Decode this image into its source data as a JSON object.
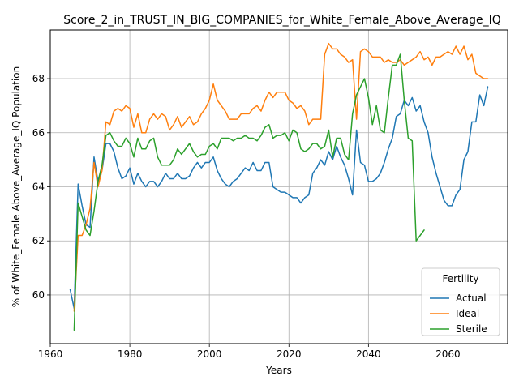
{
  "chart_data": {
    "type": "line",
    "title": "Score_2_in_TRUST_IN_BIG_COMPANIES_for_White_Female_Above_Average_IQ",
    "xlabel": "Years",
    "ylabel": "% of White_Female Above_Average_IQ Population",
    "xlim": [
      1960,
      2075
    ],
    "ylim": [
      58.2,
      69.8
    ],
    "xticks": [
      1960,
      1980,
      2000,
      2020,
      2040,
      2060
    ],
    "yticks": [
      60,
      62,
      64,
      66,
      68
    ],
    "grid": true,
    "legend": {
      "title": "Fertility",
      "placement": "bottom-right"
    },
    "series": [
      {
        "name": "Actual",
        "color": "#1f77b4",
        "points": [
          [
            1965,
            60.2
          ],
          [
            1966,
            59.5
          ],
          [
            1967,
            64.1
          ],
          [
            1968,
            63.3
          ],
          [
            1969,
            62.6
          ],
          [
            1970,
            62.5
          ],
          [
            1971,
            65.1
          ],
          [
            1972,
            64.2
          ],
          [
            1973,
            64.6
          ],
          [
            1974,
            65.6
          ],
          [
            1975,
            65.6
          ],
          [
            1976,
            65.3
          ],
          [
            1977,
            64.7
          ],
          [
            1978,
            64.3
          ],
          [
            1979,
            64.4
          ],
          [
            1980,
            64.7
          ],
          [
            1981,
            64.1
          ],
          [
            1982,
            64.5
          ],
          [
            1983,
            64.2
          ],
          [
            1984,
            64.0
          ],
          [
            1985,
            64.2
          ],
          [
            1986,
            64.2
          ],
          [
            1987,
            64.0
          ],
          [
            1988,
            64.2
          ],
          [
            1989,
            64.5
          ],
          [
            1990,
            64.3
          ],
          [
            1991,
            64.3
          ],
          [
            1992,
            64.5
          ],
          [
            1993,
            64.3
          ],
          [
            1994,
            64.3
          ],
          [
            1995,
            64.4
          ],
          [
            1996,
            64.7
          ],
          [
            1997,
            64.9
          ],
          [
            1998,
            64.7
          ],
          [
            1999,
            64.9
          ],
          [
            2000,
            64.9
          ],
          [
            2001,
            65.1
          ],
          [
            2002,
            64.6
          ],
          [
            2003,
            64.3
          ],
          [
            2004,
            64.1
          ],
          [
            2005,
            64.0
          ],
          [
            2006,
            64.2
          ],
          [
            2007,
            64.3
          ],
          [
            2008,
            64.5
          ],
          [
            2009,
            64.7
          ],
          [
            2010,
            64.6
          ],
          [
            2011,
            64.9
          ],
          [
            2012,
            64.6
          ],
          [
            2013,
            64.6
          ],
          [
            2014,
            64.9
          ],
          [
            2015,
            64.9
          ],
          [
            2016,
            64.0
          ],
          [
            2017,
            63.9
          ],
          [
            2018,
            63.8
          ],
          [
            2019,
            63.8
          ],
          [
            2020,
            63.7
          ],
          [
            2021,
            63.6
          ],
          [
            2022,
            63.6
          ],
          [
            2023,
            63.4
          ],
          [
            2024,
            63.6
          ],
          [
            2025,
            63.7
          ],
          [
            2026,
            64.5
          ],
          [
            2027,
            64.7
          ],
          [
            2028,
            65.0
          ],
          [
            2029,
            64.8
          ],
          [
            2030,
            65.3
          ],
          [
            2031,
            65.0
          ],
          [
            2032,
            65.5
          ],
          [
            2033,
            65.1
          ],
          [
            2034,
            64.8
          ],
          [
            2035,
            64.3
          ],
          [
            2036,
            63.7
          ],
          [
            2037,
            66.1
          ],
          [
            2038,
            64.9
          ],
          [
            2039,
            64.8
          ],
          [
            2040,
            64.2
          ],
          [
            2041,
            64.2
          ],
          [
            2042,
            64.3
          ],
          [
            2043,
            64.5
          ],
          [
            2044,
            64.9
          ],
          [
            2045,
            65.4
          ],
          [
            2046,
            65.8
          ],
          [
            2047,
            66.6
          ],
          [
            2048,
            66.7
          ],
          [
            2049,
            67.2
          ],
          [
            2050,
            67.0
          ],
          [
            2051,
            67.3
          ],
          [
            2052,
            66.8
          ],
          [
            2053,
            67.0
          ],
          [
            2054,
            66.4
          ],
          [
            2055,
            66.0
          ],
          [
            2056,
            65.1
          ],
          [
            2057,
            64.5
          ],
          [
            2058,
            64.0
          ],
          [
            2059,
            63.5
          ],
          [
            2060,
            63.3
          ],
          [
            2061,
            63.3
          ],
          [
            2062,
            63.7
          ],
          [
            2063,
            63.9
          ],
          [
            2064,
            65.0
          ],
          [
            2065,
            65.3
          ],
          [
            2066,
            66.4
          ],
          [
            2067,
            66.4
          ],
          [
            2068,
            67.4
          ],
          [
            2069,
            67.0
          ],
          [
            2070,
            67.7
          ]
        ]
      },
      {
        "name": "Ideal",
        "color": "#ff7f0e",
        "points": [
          [
            1966,
            59.4
          ],
          [
            1967,
            62.2
          ],
          [
            1968,
            62.2
          ],
          [
            1969,
            62.6
          ],
          [
            1970,
            63.2
          ],
          [
            1971,
            64.9
          ],
          [
            1972,
            64.0
          ],
          [
            1973,
            64.6
          ],
          [
            1974,
            66.4
          ],
          [
            1975,
            66.3
          ],
          [
            1976,
            66.8
          ],
          [
            1977,
            66.9
          ],
          [
            1978,
            66.8
          ],
          [
            1979,
            67.0
          ],
          [
            1980,
            66.9
          ],
          [
            1981,
            66.2
          ],
          [
            1982,
            66.7
          ],
          [
            1983,
            66.0
          ],
          [
            1984,
            66.0
          ],
          [
            1985,
            66.5
          ],
          [
            1986,
            66.7
          ],
          [
            1987,
            66.5
          ],
          [
            1988,
            66.7
          ],
          [
            1989,
            66.6
          ],
          [
            1990,
            66.1
          ],
          [
            1991,
            66.3
          ],
          [
            1992,
            66.6
          ],
          [
            1993,
            66.2
          ],
          [
            1994,
            66.4
          ],
          [
            1995,
            66.6
          ],
          [
            1996,
            66.3
          ],
          [
            1997,
            66.4
          ],
          [
            1998,
            66.7
          ],
          [
            1999,
            66.9
          ],
          [
            2000,
            67.2
          ],
          [
            2001,
            67.8
          ],
          [
            2002,
            67.2
          ],
          [
            2003,
            67.0
          ],
          [
            2004,
            66.8
          ],
          [
            2005,
            66.5
          ],
          [
            2006,
            66.5
          ],
          [
            2007,
            66.5
          ],
          [
            2008,
            66.7
          ],
          [
            2009,
            66.7
          ],
          [
            2010,
            66.7
          ],
          [
            2011,
            66.9
          ],
          [
            2012,
            67.0
          ],
          [
            2013,
            66.8
          ],
          [
            2014,
            67.2
          ],
          [
            2015,
            67.5
          ],
          [
            2016,
            67.3
          ],
          [
            2017,
            67.5
          ],
          [
            2018,
            67.5
          ],
          [
            2019,
            67.5
          ],
          [
            2020,
            67.2
          ],
          [
            2021,
            67.1
          ],
          [
            2022,
            66.9
          ],
          [
            2023,
            67.0
          ],
          [
            2024,
            66.8
          ],
          [
            2025,
            66.3
          ],
          [
            2026,
            66.5
          ],
          [
            2027,
            66.5
          ],
          [
            2028,
            66.5
          ],
          [
            2029,
            68.9
          ],
          [
            2030,
            69.3
          ],
          [
            2031,
            69.1
          ],
          [
            2032,
            69.1
          ],
          [
            2033,
            68.9
          ],
          [
            2034,
            68.8
          ],
          [
            2035,
            68.6
          ],
          [
            2036,
            68.7
          ],
          [
            2037,
            66.5
          ],
          [
            2038,
            69.0
          ],
          [
            2039,
            69.1
          ],
          [
            2040,
            69.0
          ],
          [
            2041,
            68.8
          ],
          [
            2042,
            68.8
          ],
          [
            2043,
            68.8
          ],
          [
            2044,
            68.6
          ],
          [
            2045,
            68.7
          ],
          [
            2046,
            68.6
          ],
          [
            2047,
            68.6
          ],
          [
            2048,
            68.7
          ],
          [
            2049,
            68.5
          ],
          [
            2050,
            68.6
          ],
          [
            2051,
            68.7
          ],
          [
            2052,
            68.8
          ],
          [
            2053,
            69.0
          ],
          [
            2054,
            68.7
          ],
          [
            2055,
            68.8
          ],
          [
            2056,
            68.5
          ],
          [
            2057,
            68.8
          ],
          [
            2058,
            68.8
          ],
          [
            2059,
            68.9
          ],
          [
            2060,
            69.0
          ],
          [
            2061,
            68.9
          ],
          [
            2062,
            69.2
          ],
          [
            2063,
            68.9
          ],
          [
            2064,
            69.2
          ],
          [
            2065,
            68.7
          ],
          [
            2066,
            68.9
          ],
          [
            2067,
            68.2
          ],
          [
            2068,
            68.1
          ],
          [
            2069,
            68.0
          ],
          [
            2070,
            68.0
          ]
        ]
      },
      {
        "name": "Sterile",
        "color": "#2ca02c",
        "points": [
          [
            1966,
            58.7
          ],
          [
            1967,
            63.4
          ],
          [
            1968,
            62.9
          ],
          [
            1969,
            62.4
          ],
          [
            1970,
            62.2
          ],
          [
            1971,
            63.1
          ],
          [
            1972,
            64.2
          ],
          [
            1973,
            64.8
          ],
          [
            1974,
            65.9
          ],
          [
            1975,
            66.0
          ],
          [
            1976,
            65.7
          ],
          [
            1977,
            65.5
          ],
          [
            1978,
            65.5
          ],
          [
            1979,
            65.8
          ],
          [
            1980,
            65.6
          ],
          [
            1981,
            65.1
          ],
          [
            1982,
            65.8
          ],
          [
            1983,
            65.4
          ],
          [
            1984,
            65.4
          ],
          [
            1985,
            65.7
          ],
          [
            1986,
            65.8
          ],
          [
            1987,
            65.1
          ],
          [
            1988,
            64.8
          ],
          [
            1989,
            64.8
          ],
          [
            1990,
            64.8
          ],
          [
            1991,
            65.0
          ],
          [
            1992,
            65.4
          ],
          [
            1993,
            65.2
          ],
          [
            1994,
            65.4
          ],
          [
            1995,
            65.6
          ],
          [
            1996,
            65.3
          ],
          [
            1997,
            65.1
          ],
          [
            1998,
            65.2
          ],
          [
            1999,
            65.2
          ],
          [
            2000,
            65.5
          ],
          [
            2001,
            65.6
          ],
          [
            2002,
            65.4
          ],
          [
            2003,
            65.8
          ],
          [
            2004,
            65.8
          ],
          [
            2005,
            65.8
          ],
          [
            2006,
            65.7
          ],
          [
            2007,
            65.8
          ],
          [
            2008,
            65.8
          ],
          [
            2009,
            65.9
          ],
          [
            2010,
            65.8
          ],
          [
            2011,
            65.8
          ],
          [
            2012,
            65.7
          ],
          [
            2013,
            65.9
          ],
          [
            2014,
            66.2
          ],
          [
            2015,
            66.3
          ],
          [
            2016,
            65.8
          ],
          [
            2017,
            65.9
          ],
          [
            2018,
            65.9
          ],
          [
            2019,
            66.0
          ],
          [
            2020,
            65.7
          ],
          [
            2021,
            66.1
          ],
          [
            2022,
            66.0
          ],
          [
            2023,
            65.4
          ],
          [
            2024,
            65.3
          ],
          [
            2025,
            65.4
          ],
          [
            2026,
            65.6
          ],
          [
            2027,
            65.6
          ],
          [
            2028,
            65.4
          ],
          [
            2029,
            65.5
          ],
          [
            2030,
            66.1
          ],
          [
            2031,
            65.1
          ],
          [
            2032,
            65.8
          ],
          [
            2033,
            65.8
          ],
          [
            2034,
            65.2
          ],
          [
            2035,
            65.0
          ],
          [
            2036,
            66.7
          ],
          [
            2037,
            67.4
          ],
          [
            2038,
            67.7
          ],
          [
            2039,
            68.0
          ],
          [
            2040,
            67.3
          ],
          [
            2041,
            66.3
          ],
          [
            2042,
            67.0
          ],
          [
            2043,
            66.1
          ],
          [
            2044,
            66.0
          ],
          [
            2045,
            67.3
          ],
          [
            2046,
            68.5
          ],
          [
            2047,
            68.5
          ],
          [
            2048,
            68.9
          ],
          [
            2049,
            67.2
          ],
          [
            2050,
            65.8
          ],
          [
            2051,
            65.7
          ],
          [
            2052,
            62.0
          ],
          [
            2053,
            62.2
          ],
          [
            2054,
            62.4
          ]
        ]
      }
    ]
  }
}
